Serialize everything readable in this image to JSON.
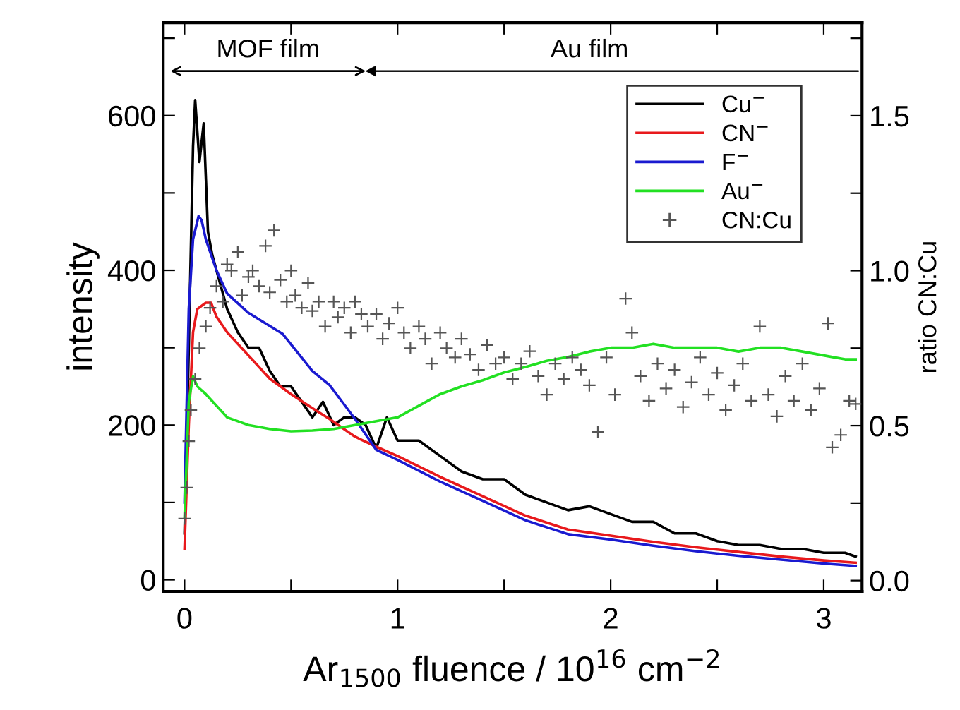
{
  "chart_data": {
    "type": "line",
    "xlabel": "Ar$_{1500}$ fluence / 10$^{16}$ cm$^{−2}$",
    "ylabel": "intensity",
    "y2label": "ratio CN:Cu",
    "xlim": [
      -0.1,
      3.18
    ],
    "xticks": [
      0,
      {
        "value": 0.5,
        "label": null
      },
      1,
      {
        "value": 1.5,
        "label": null
      },
      2,
      {
        "value": 2.5,
        "label": null
      },
      3
    ],
    "ylim": [
      -15,
      720
    ],
    "yticks": [
      0,
      {
        "value": 100,
        "label": null
      },
      200,
      {
        "value": 300,
        "label": null
      },
      400,
      {
        "value": 500,
        "label": null
      },
      600,
      {
        "value": 700,
        "label": null
      }
    ],
    "y2lim": [
      -0.035,
      1.8
    ],
    "y2ticks": [
      {
        "value": 0,
        "label": "0.0"
      },
      {
        "value": 0.25,
        "label": null
      },
      0.5,
      {
        "value": 0.75,
        "label": null
      },
      {
        "value": 1,
        "label": "1.0"
      },
      {
        "value": 1.25,
        "label": null
      },
      1.5,
      {
        "value": 1.75,
        "label": null
      }
    ],
    "grid": false,
    "legend": "top right",
    "annotations": [
      "MOF film",
      "Au film"
    ],
    "series": [
      {
        "name": "Cu$^{−}$",
        "color": "#000000",
        "x": [
          0,
          0.02,
          0.04,
          0.05,
          0.07,
          0.09,
          0.11,
          0.13,
          0.15,
          0.2,
          0.25,
          0.3,
          0.35,
          0.4,
          0.45,
          0.5,
          0.55,
          0.6,
          0.65,
          0.7,
          0.75,
          0.8,
          0.85,
          0.9,
          0.95,
          1.0,
          1.1,
          1.2,
          1.3,
          1.4,
          1.5,
          1.6,
          1.7,
          1.8,
          1.9,
          2.0,
          2.1,
          2.2,
          2.3,
          2.4,
          2.5,
          2.6,
          2.7,
          2.8,
          2.9,
          3.0,
          3.1,
          3.15
        ],
        "values": [
          60,
          300,
          560,
          620,
          540,
          590,
          450,
          420,
          400,
          350,
          320,
          300,
          300,
          270,
          250,
          250,
          230,
          210,
          230,
          200,
          210,
          210,
          200,
          170,
          210,
          180,
          180,
          160,
          140,
          130,
          130,
          110,
          100,
          90,
          95,
          85,
          75,
          75,
          60,
          60,
          50,
          45,
          45,
          40,
          40,
          35,
          35,
          30
        ]
      },
      {
        "name": "CN$^{−}$",
        "color": "#e8191c",
        "x": [
          0,
          0.02,
          0.04,
          0.06,
          0.1,
          0.125,
          0.15,
          0.2,
          0.3,
          0.4,
          0.5,
          0.6,
          0.68,
          0.8,
          0.9,
          1.0,
          1.2,
          1.4,
          1.6,
          1.8,
          2.0,
          2.2,
          2.4,
          2.6,
          2.8,
          3.0,
          3.15
        ],
        "values": [
          40,
          200,
          320,
          350,
          358,
          358,
          340,
          320,
          290,
          260,
          240,
          222,
          208,
          185,
          172,
          160,
          133,
          108,
          83,
          65,
          57,
          49,
          42,
          36,
          30,
          25,
          22
        ]
      },
      {
        "name": "F$^{−}$",
        "color": "#1a1ad0",
        "x": [
          0,
          0.02,
          0.04,
          0.066,
          0.08,
          0.1,
          0.15,
          0.2,
          0.3,
          0.46,
          0.6,
          0.68,
          0.8,
          0.9,
          1.0,
          1.2,
          1.4,
          1.6,
          1.8,
          2.0,
          2.2,
          2.4,
          2.6,
          2.8,
          3.0,
          3.15
        ],
        "values": [
          100,
          350,
          440,
          470,
          465,
          440,
          400,
          370,
          345,
          318,
          270,
          252,
          208,
          168,
          155,
          127,
          102,
          77,
          59,
          52,
          44,
          37,
          31,
          26,
          21,
          18
        ]
      },
      {
        "name": "Au$^{−}$",
        "color": "#22e022",
        "x": [
          0,
          0.02,
          0.04,
          0.06,
          0.1,
          0.2,
          0.3,
          0.4,
          0.5,
          0.6,
          0.7,
          0.8,
          0.9,
          1.0,
          1.1,
          1.2,
          1.3,
          1.4,
          1.5,
          1.6,
          1.7,
          1.8,
          1.9,
          2.0,
          2.1,
          2.2,
          2.3,
          2.4,
          2.5,
          2.6,
          2.7,
          2.8,
          2.9,
          3.0,
          3.1,
          3.15
        ],
        "values": [
          80,
          230,
          263,
          250,
          240,
          210,
          200,
          195,
          192,
          193,
          195,
          200,
          205,
          210,
          225,
          240,
          250,
          258,
          268,
          275,
          283,
          288,
          295,
          300,
          300,
          305,
          300,
          300,
          300,
          295,
          300,
          300,
          295,
          290,
          285,
          285
        ]
      },
      {
        "name": "CN:Cu",
        "type": "scatter",
        "axis": "y2",
        "marker": "cross",
        "color": "#555555",
        "x": [
          0.0,
          0.01,
          0.02,
          0.03,
          0.05,
          0.07,
          0.1,
          0.12,
          0.15,
          0.18,
          0.2,
          0.22,
          0.25,
          0.27,
          0.3,
          0.32,
          0.35,
          0.38,
          0.4,
          0.42,
          0.45,
          0.48,
          0.5,
          0.52,
          0.55,
          0.58,
          0.6,
          0.63,
          0.66,
          0.7,
          0.72,
          0.75,
          0.78,
          0.8,
          0.83,
          0.86,
          0.9,
          0.93,
          0.96,
          1.0,
          1.03,
          1.06,
          1.1,
          1.13,
          1.16,
          1.2,
          1.23,
          1.27,
          1.3,
          1.34,
          1.38,
          1.42,
          1.46,
          1.5,
          1.54,
          1.58,
          1.62,
          1.66,
          1.7,
          1.74,
          1.78,
          1.82,
          1.86,
          1.9,
          1.94,
          1.98,
          2.02,
          2.07,
          2.1,
          2.14,
          2.18,
          2.22,
          2.26,
          2.3,
          2.34,
          2.38,
          2.42,
          2.46,
          2.5,
          2.54,
          2.58,
          2.62,
          2.66,
          2.7,
          2.74,
          2.78,
          2.82,
          2.86,
          2.9,
          2.94,
          2.98,
          3.02,
          3.04,
          3.08,
          3.12,
          3.15
        ],
        "values": [
          0.2,
          0.3,
          0.45,
          0.55,
          0.65,
          0.75,
          0.82,
          0.88,
          0.95,
          0.9,
          1.02,
          1.0,
          1.06,
          0.92,
          0.98,
          1.0,
          0.95,
          1.08,
          0.93,
          1.13,
          0.97,
          0.9,
          1.0,
          0.92,
          0.88,
          0.96,
          0.87,
          0.9,
          0.82,
          0.9,
          0.85,
          0.88,
          0.8,
          0.9,
          0.86,
          0.82,
          0.86,
          0.78,
          0.83,
          0.88,
          0.8,
          0.75,
          0.82,
          0.78,
          0.7,
          0.8,
          0.75,
          0.72,
          0.78,
          0.73,
          0.68,
          0.76,
          0.7,
          0.72,
          0.65,
          0.7,
          0.74,
          0.66,
          0.6,
          0.7,
          0.65,
          0.72,
          0.68,
          0.63,
          0.48,
          0.72,
          0.6,
          0.91,
          0.8,
          0.66,
          0.58,
          0.7,
          0.62,
          0.68,
          0.56,
          0.64,
          0.72,
          0.6,
          0.67,
          0.55,
          0.63,
          0.7,
          0.58,
          0.82,
          0.6,
          0.53,
          0.66,
          0.58,
          0.7,
          0.55,
          0.62,
          0.83,
          0.43,
          0.47,
          0.58,
          0.57
        ]
      }
    ]
  }
}
